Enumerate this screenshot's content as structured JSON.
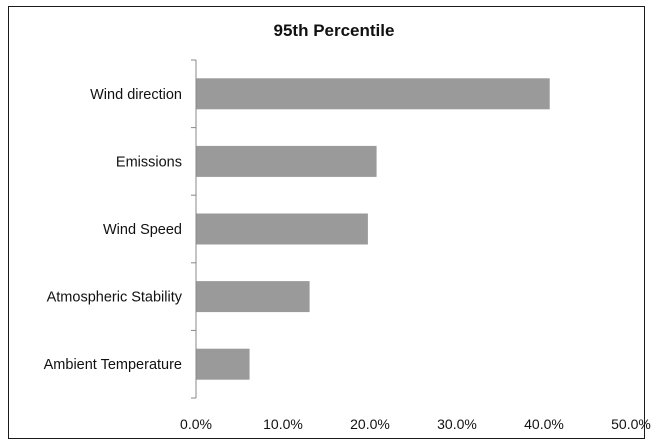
{
  "chart_data": {
    "type": "bar",
    "orientation": "horizontal",
    "title": "95th Percentile",
    "categories": [
      "Wind direction",
      "Emissions",
      "Wind Speed",
      "Atmospheric Stability",
      "Ambient Temperature"
    ],
    "values": [
      40.6,
      20.7,
      19.7,
      13.0,
      6.1
    ],
    "xlim": [
      0,
      50
    ],
    "x_ticks": [
      "0.0%",
      "10.0%",
      "20.0%",
      "30.0%",
      "40.0%",
      "50.0%"
    ],
    "grid": false,
    "legend": "none",
    "bar_color": "#9a9a9a"
  }
}
